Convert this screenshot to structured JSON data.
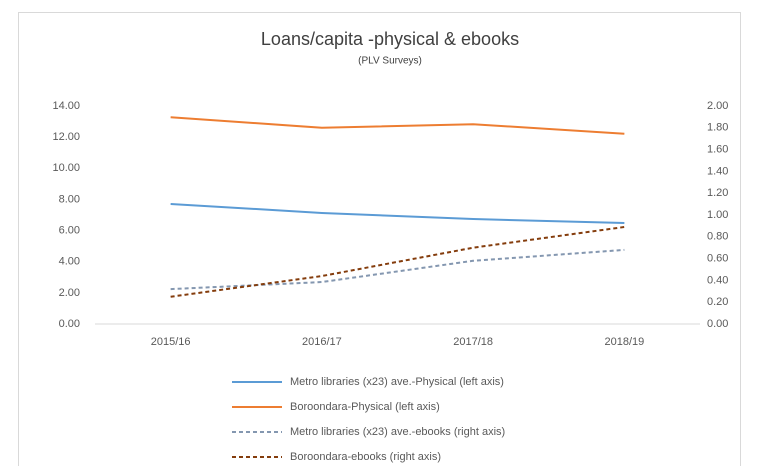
{
  "chart_data": {
    "type": "line",
    "title": "Loans/capita -physical & ebooks",
    "subtitle": "(PLV Surveys)",
    "categories": [
      "2015/16",
      "2016/17",
      "2017/18",
      "2018/19"
    ],
    "series": [
      {
        "name": "Metro libraries (x23) ave.-Physical (left axis)",
        "color": "#5b9bd5",
        "dash": false,
        "values": [
          7.71,
          7.13,
          6.74,
          6.49
        ]
      },
      {
        "name": "Boroondara-Physical (left axis)",
        "color": "#ed7d31",
        "dash": false,
        "values": [
          13.28,
          12.6,
          12.83,
          12.22
        ]
      },
      {
        "name": "Metro libraries (x23) ave.-ebooks (right axis)",
        "color": "#8497b0",
        "dash": true,
        "axis": "y2",
        "values": [
          0.32,
          0.385,
          0.58,
          0.68
        ]
      },
      {
        "name": "Boroondara-ebooks (right axis)",
        "color": "#843c0c",
        "dash": true,
        "axis": "y2",
        "values": [
          0.25,
          0.44,
          0.7,
          0.89
        ]
      }
    ],
    "ylim": [
      0,
      14
    ],
    "yticks": [
      {
        "value": 0,
        "label": "0.00"
      },
      {
        "value": 2,
        "label": "2.00"
      },
      {
        "value": 4,
        "label": "4.00"
      },
      {
        "value": 6,
        "label": "6.00"
      },
      {
        "value": 8,
        "label": "8.00"
      },
      {
        "value": 10,
        "label": "10.00"
      },
      {
        "value": 12,
        "label": "12.00"
      },
      {
        "value": 14,
        "label": "14.00"
      }
    ],
    "y2lim": [
      0,
      2
    ],
    "y2ticks": [
      {
        "value": 0,
        "label": "0.00"
      },
      {
        "value": 0.2,
        "label": "0.20"
      },
      {
        "value": 0.4,
        "label": "0.40"
      },
      {
        "value": 0.6,
        "label": "0.60"
      },
      {
        "value": 0.8,
        "label": "0.80"
      },
      {
        "value": 1,
        "label": "1.00"
      },
      {
        "value": 1.2,
        "label": "1.20"
      },
      {
        "value": 1.4,
        "label": "1.40"
      },
      {
        "value": 1.6,
        "label": "1.60"
      },
      {
        "value": 1.8,
        "label": "1.80"
      },
      {
        "value": 2,
        "label": "2.00"
      }
    ],
    "grid": false,
    "legend": "bottom"
  }
}
